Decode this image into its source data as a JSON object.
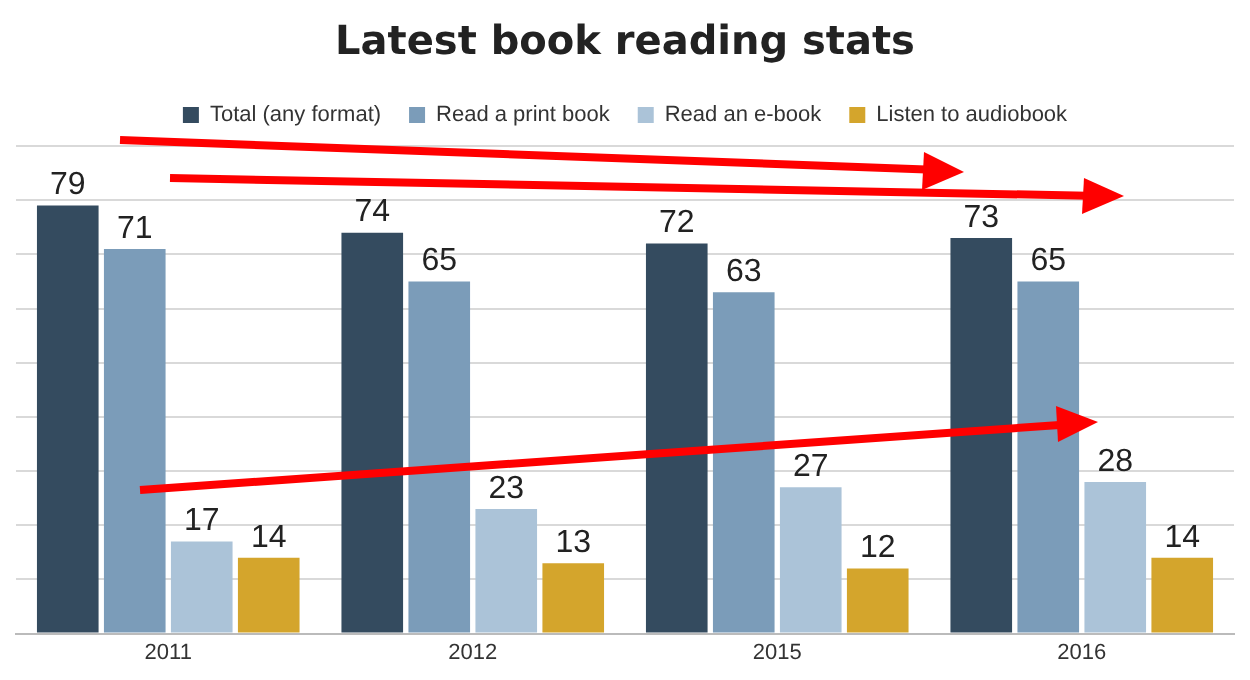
{
  "chart_data": {
    "type": "bar",
    "title": "Latest book reading stats",
    "categories": [
      "2011",
      "2012",
      "2015",
      "2016"
    ],
    "series": [
      {
        "name": "Total (any format)",
        "color": "#344b5f",
        "values": [
          79,
          74,
          72,
          73
        ]
      },
      {
        "name": "Read a print book",
        "color": "#7b9cb9",
        "values": [
          71,
          65,
          63,
          65
        ]
      },
      {
        "name": "Read an e-book",
        "color": "#abc3d8",
        "values": [
          17,
          23,
          27,
          28
        ]
      },
      {
        "name": "Listen to audiobook",
        "color": "#d4a52c",
        "values": [
          14,
          13,
          12,
          14
        ]
      }
    ],
    "ylim": [
      0,
      90
    ],
    "yticks": [
      {
        "value": 0,
        "label": null
      },
      {
        "value": 10,
        "label": null
      },
      {
        "value": 20,
        "label": null
      },
      {
        "value": 30,
        "label": null
      },
      {
        "value": 40,
        "label": null
      },
      {
        "value": 50,
        "label": null
      },
      {
        "value": 60,
        "label": null
      },
      {
        "value": 70,
        "label": null
      },
      {
        "value": 80,
        "label": null
      },
      {
        "value": 90,
        "label": null
      }
    ],
    "grid": "y",
    "legend": "top",
    "tick_labels": "x",
    "data_labels": true
  }
}
